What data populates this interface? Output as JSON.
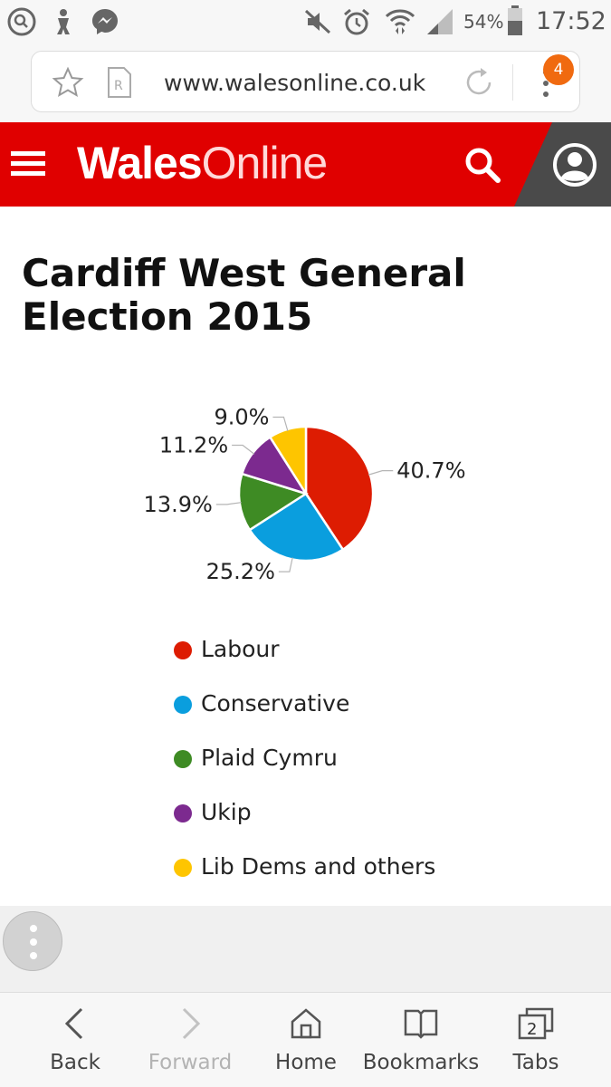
{
  "status_bar": {
    "battery": "54%",
    "time": "17:52",
    "icons": [
      "search-app-icon",
      "person-app-icon",
      "messenger-icon",
      "mute-icon",
      "alarm-icon",
      "wifi-icon",
      "signal-icon",
      "battery-icon"
    ]
  },
  "browser": {
    "url": "www.walesonline.co.uk",
    "menu_badge": "4",
    "icons": [
      "bookmark-star-icon",
      "reader-mode-icon",
      "reload-icon",
      "more-menu-icon"
    ]
  },
  "site": {
    "logo_bold": "Wales",
    "logo_light": "Online",
    "colors": {
      "brand": "#e00000",
      "account": "#4a4a4a"
    },
    "icons": [
      "hamburger-menu-icon",
      "search-icon",
      "account-icon"
    ]
  },
  "article": {
    "title": "Cardiff West General Election 2015"
  },
  "chart_data": {
    "type": "pie",
    "title": "",
    "slices": [
      {
        "name": "Labour",
        "value": 40.7,
        "label": "40.7%",
        "color": "#dd1c02"
      },
      {
        "name": "Conservative",
        "value": 25.2,
        "label": "25.2%",
        "color": "#0a9ede"
      },
      {
        "name": "Plaid Cymru",
        "value": 13.9,
        "label": "13.9%",
        "color": "#3e8b24"
      },
      {
        "name": "Ukip",
        "value": 11.2,
        "label": "11.2%",
        "color": "#7c2a8f"
      },
      {
        "name": "Lib Dems and others",
        "value": 9.0,
        "label": "9.0%",
        "color": "#fec500"
      }
    ],
    "legend_position": "bottom"
  },
  "bottom_nav": {
    "items": [
      {
        "label": "Back",
        "icon": "back-chevron-icon",
        "enabled": true
      },
      {
        "label": "Forward",
        "icon": "forward-chevron-icon",
        "enabled": false
      },
      {
        "label": "Home",
        "icon": "home-icon",
        "enabled": true
      },
      {
        "label": "Bookmarks",
        "icon": "bookmarks-book-icon",
        "enabled": true
      },
      {
        "label": "Tabs",
        "icon": "tabs-icon",
        "enabled": true,
        "count": "2"
      }
    ]
  }
}
